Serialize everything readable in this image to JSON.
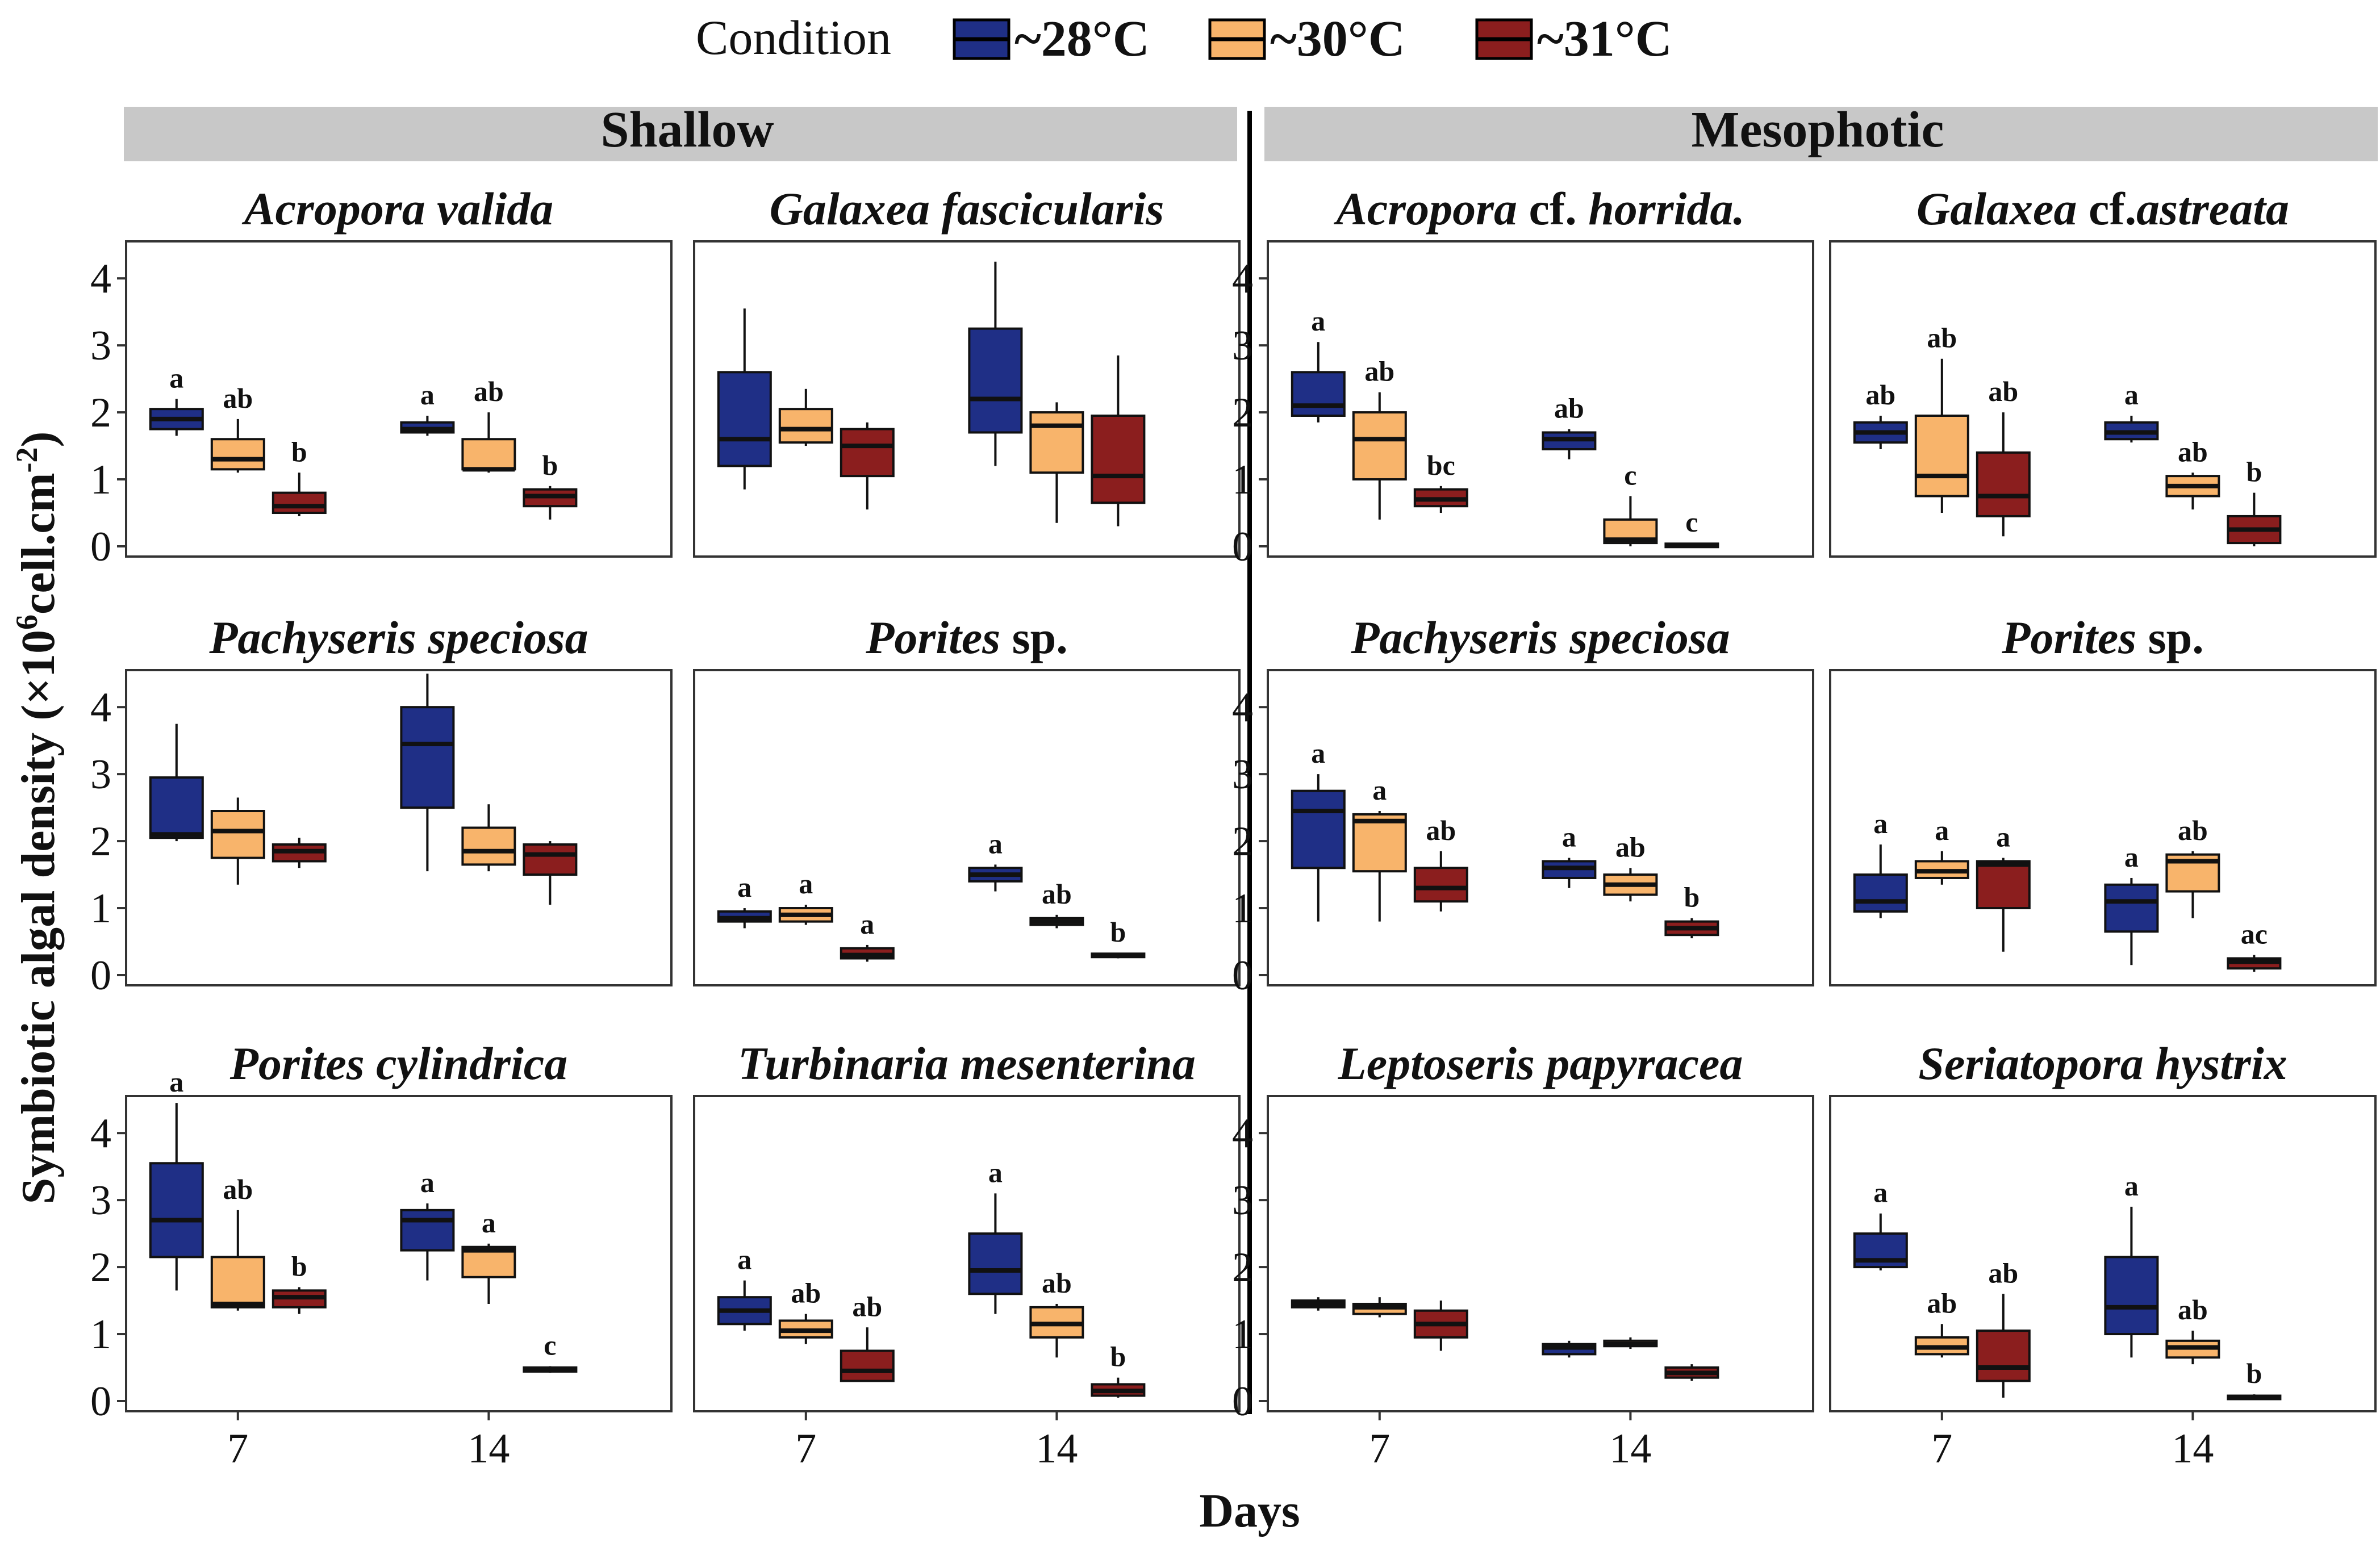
{
  "legend": {
    "title": "Condition",
    "entries": [
      {
        "label": "~28°C",
        "color": "#1f2f86"
      },
      {
        "label": "~30°C",
        "color": "#f8b46b"
      },
      {
        "label": "~31°C",
        "color": "#8b1e1e"
      }
    ]
  },
  "axes": {
    "xlabel": "Days",
    "ylabel_main": "Symbiotic algal density (×10",
    "ylabel_sup1": "6",
    "ylabel_mid": "cell.cm",
    "ylabel_sup2": "-2",
    "ylabel_end": ")",
    "yticks": [
      "0",
      "1",
      "2",
      "3",
      "4"
    ],
    "xticks": [
      "7",
      "14"
    ]
  },
  "strips": [
    {
      "label": "Shallow"
    },
    {
      "label": "Mesophotic"
    }
  ],
  "chart_data": {
    "type": "box",
    "title": "",
    "xlabel": "Days",
    "ylabel": "Symbiotic algal density (×10^6 cell.cm^-2)",
    "ylim": [
      0,
      4.4
    ],
    "categories": [
      "7",
      "14"
    ],
    "series_names": [
      "~28°C",
      "~30°C",
      "~31°C"
    ],
    "panels": [
      {
        "habitat": "Shallow",
        "title_parts": [
          {
            "t": "Acropora valida",
            "i": true
          }
        ],
        "boxes": [
          {
            "day": "7",
            "s": 0,
            "min": 1.65,
            "q1": 1.75,
            "median": 1.9,
            "q3": 2.05,
            "max": 2.2,
            "label": "a"
          },
          {
            "day": "7",
            "s": 1,
            "min": 1.1,
            "q1": 1.15,
            "median": 1.3,
            "q3": 1.6,
            "max": 1.9,
            "label": "ab"
          },
          {
            "day": "7",
            "s": 2,
            "min": 0.45,
            "q1": 0.5,
            "median": 0.6,
            "q3": 0.8,
            "max": 1.1,
            "label": "b"
          },
          {
            "day": "14",
            "s": 0,
            "min": 1.65,
            "q1": 1.7,
            "median": 1.75,
            "q3": 1.85,
            "max": 1.95,
            "label": "a"
          },
          {
            "day": "14",
            "s": 1,
            "min": 1.1,
            "q1": 1.15,
            "median": 1.15,
            "q3": 1.6,
            "max": 2.0,
            "label": "ab"
          },
          {
            "day": "14",
            "s": 2,
            "min": 0.4,
            "q1": 0.6,
            "median": 0.75,
            "q3": 0.85,
            "max": 0.9,
            "label": "b"
          }
        ]
      },
      {
        "habitat": "Shallow",
        "title_parts": [
          {
            "t": "Galaxea fascicularis",
            "i": true
          }
        ],
        "boxes": [
          {
            "day": "7",
            "s": 0,
            "min": 0.85,
            "q1": 1.2,
            "median": 1.6,
            "q3": 2.6,
            "max": 3.55,
            "label": ""
          },
          {
            "day": "7",
            "s": 1,
            "min": 1.5,
            "q1": 1.55,
            "median": 1.75,
            "q3": 2.05,
            "max": 2.35,
            "label": ""
          },
          {
            "day": "7",
            "s": 2,
            "min": 0.55,
            "q1": 1.05,
            "median": 1.5,
            "q3": 1.75,
            "max": 1.85,
            "label": ""
          },
          {
            "day": "14",
            "s": 0,
            "min": 1.2,
            "q1": 1.7,
            "median": 2.2,
            "q3": 3.25,
            "max": 4.25,
            "label": ""
          },
          {
            "day": "14",
            "s": 1,
            "min": 0.35,
            "q1": 1.1,
            "median": 1.8,
            "q3": 2.0,
            "max": 2.15,
            "label": ""
          },
          {
            "day": "14",
            "s": 2,
            "min": 0.3,
            "q1": 0.65,
            "median": 1.05,
            "q3": 1.95,
            "max": 2.85,
            "label": ""
          }
        ]
      },
      {
        "habitat": "Mesophotic",
        "title_parts": [
          {
            "t": "Acropora",
            "i": true
          },
          {
            "t": " cf. ",
            "i": false
          },
          {
            "t": "horrida.",
            "i": true
          }
        ],
        "boxes": [
          {
            "day": "7",
            "s": 0,
            "min": 1.85,
            "q1": 1.95,
            "median": 2.1,
            "q3": 2.6,
            "max": 3.05,
            "label": "a"
          },
          {
            "day": "7",
            "s": 1,
            "min": 0.4,
            "q1": 1.0,
            "median": 1.6,
            "q3": 2.0,
            "max": 2.3,
            "label": "ab"
          },
          {
            "day": "7",
            "s": 2,
            "min": 0.5,
            "q1": 0.6,
            "median": 0.7,
            "q3": 0.85,
            "max": 0.9,
            "label": "bc"
          },
          {
            "day": "14",
            "s": 0,
            "min": 1.3,
            "q1": 1.45,
            "median": 1.6,
            "q3": 1.7,
            "max": 1.75,
            "label": "ab"
          },
          {
            "day": "14",
            "s": 1,
            "min": 0.0,
            "q1": 0.05,
            "median": 0.1,
            "q3": 0.4,
            "max": 0.75,
            "label": "c"
          },
          {
            "day": "14",
            "s": 2,
            "min": 0.0,
            "q1": 0.0,
            "median": 0.02,
            "q3": 0.04,
            "max": 0.05,
            "label": "c"
          }
        ]
      },
      {
        "habitat": "Mesophotic",
        "title_parts": [
          {
            "t": "Galaxea",
            "i": true
          },
          {
            "t": " cf.",
            "i": false
          },
          {
            "t": "astreata",
            "i": true
          }
        ],
        "boxes": [
          {
            "day": "7",
            "s": 0,
            "min": 1.45,
            "q1": 1.55,
            "median": 1.7,
            "q3": 1.85,
            "max": 1.95,
            "label": "ab"
          },
          {
            "day": "7",
            "s": 1,
            "min": 0.5,
            "q1": 0.75,
            "median": 1.05,
            "q3": 1.95,
            "max": 2.8,
            "label": "ab"
          },
          {
            "day": "7",
            "s": 2,
            "min": 0.15,
            "q1": 0.45,
            "median": 0.75,
            "q3": 1.4,
            "max": 2.0,
            "label": "ab"
          },
          {
            "day": "14",
            "s": 0,
            "min": 1.55,
            "q1": 1.6,
            "median": 1.7,
            "q3": 1.85,
            "max": 1.95,
            "label": "a"
          },
          {
            "day": "14",
            "s": 1,
            "min": 0.55,
            "q1": 0.75,
            "median": 0.9,
            "q3": 1.05,
            "max": 1.1,
            "label": "ab"
          },
          {
            "day": "14",
            "s": 2,
            "min": 0.0,
            "q1": 0.05,
            "median": 0.25,
            "q3": 0.45,
            "max": 0.8,
            "label": "b"
          }
        ]
      },
      {
        "habitat": "Shallow",
        "title_parts": [
          {
            "t": "Pachyseris speciosa",
            "i": true
          }
        ],
        "boxes": [
          {
            "day": "7",
            "s": 0,
            "min": 2.0,
            "q1": 2.05,
            "median": 2.1,
            "q3": 2.95,
            "max": 3.75,
            "label": ""
          },
          {
            "day": "7",
            "s": 1,
            "min": 1.35,
            "q1": 1.75,
            "median": 2.15,
            "q3": 2.45,
            "max": 2.65,
            "label": ""
          },
          {
            "day": "7",
            "s": 2,
            "min": 1.6,
            "q1": 1.7,
            "median": 1.85,
            "q3": 1.95,
            "max": 2.05,
            "label": ""
          },
          {
            "day": "14",
            "s": 0,
            "min": 1.55,
            "q1": 2.5,
            "median": 3.45,
            "q3": 4.0,
            "max": 4.5,
            "label": ""
          },
          {
            "day": "14",
            "s": 1,
            "min": 1.55,
            "q1": 1.65,
            "median": 1.85,
            "q3": 2.2,
            "max": 2.55,
            "label": ""
          },
          {
            "day": "14",
            "s": 2,
            "min": 1.05,
            "q1": 1.5,
            "median": 1.8,
            "q3": 1.95,
            "max": 2.0,
            "label": ""
          }
        ]
      },
      {
        "habitat": "Shallow",
        "title_parts": [
          {
            "t": "Porites",
            "i": true
          },
          {
            "t": " sp.",
            "i": false
          }
        ],
        "boxes": [
          {
            "day": "7",
            "s": 0,
            "min": 0.7,
            "q1": 0.8,
            "median": 0.85,
            "q3": 0.95,
            "max": 1.0,
            "label": "a"
          },
          {
            "day": "7",
            "s": 1,
            "min": 0.75,
            "q1": 0.8,
            "median": 0.9,
            "q3": 1.0,
            "max": 1.05,
            "label": "a"
          },
          {
            "day": "7",
            "s": 2,
            "min": 0.2,
            "q1": 0.25,
            "median": 0.3,
            "q3": 0.4,
            "max": 0.45,
            "label": "a"
          },
          {
            "day": "14",
            "s": 0,
            "min": 1.25,
            "q1": 1.4,
            "median": 1.5,
            "q3": 1.6,
            "max": 1.65,
            "label": "a"
          },
          {
            "day": "14",
            "s": 1,
            "min": 0.7,
            "q1": 0.75,
            "median": 0.8,
            "q3": 0.85,
            "max": 0.9,
            "label": "ab"
          },
          {
            "day": "14",
            "s": 2,
            "min": 0.25,
            "q1": 0.27,
            "median": 0.3,
            "q3": 0.32,
            "max": 0.33,
            "label": "b"
          }
        ]
      },
      {
        "habitat": "Mesophotic",
        "title_parts": [
          {
            "t": "Pachyseris speciosa",
            "i": true
          }
        ],
        "boxes": [
          {
            "day": "7",
            "s": 0,
            "min": 0.8,
            "q1": 1.6,
            "median": 2.45,
            "q3": 2.75,
            "max": 3.0,
            "label": "a"
          },
          {
            "day": "7",
            "s": 1,
            "min": 0.8,
            "q1": 1.55,
            "median": 2.3,
            "q3": 2.4,
            "max": 2.45,
            "label": "a"
          },
          {
            "day": "7",
            "s": 2,
            "min": 0.95,
            "q1": 1.1,
            "median": 1.3,
            "q3": 1.6,
            "max": 1.85,
            "label": "ab"
          },
          {
            "day": "14",
            "s": 0,
            "min": 1.3,
            "q1": 1.45,
            "median": 1.6,
            "q3": 1.7,
            "max": 1.75,
            "label": "a"
          },
          {
            "day": "14",
            "s": 1,
            "min": 1.1,
            "q1": 1.2,
            "median": 1.35,
            "q3": 1.5,
            "max": 1.6,
            "label": "ab"
          },
          {
            "day": "14",
            "s": 2,
            "min": 0.55,
            "q1": 0.6,
            "median": 0.7,
            "q3": 0.8,
            "max": 0.85,
            "label": "b"
          }
        ]
      },
      {
        "habitat": "Mesophotic",
        "title_parts": [
          {
            "t": "Porites",
            "i": true
          },
          {
            "t": " sp.",
            "i": false
          }
        ],
        "boxes": [
          {
            "day": "7",
            "s": 0,
            "min": 0.85,
            "q1": 0.95,
            "median": 1.1,
            "q3": 1.5,
            "max": 1.95,
            "label": "a"
          },
          {
            "day": "7",
            "s": 1,
            "min": 1.35,
            "q1": 1.45,
            "median": 1.55,
            "q3": 1.7,
            "max": 1.85,
            "label": "a"
          },
          {
            "day": "7",
            "s": 2,
            "min": 0.35,
            "q1": 1.0,
            "median": 1.65,
            "q3": 1.7,
            "max": 1.75,
            "label": "a"
          },
          {
            "day": "14",
            "s": 0,
            "min": 0.15,
            "q1": 0.65,
            "median": 1.1,
            "q3": 1.35,
            "max": 1.45,
            "label": "a"
          },
          {
            "day": "14",
            "s": 1,
            "min": 0.85,
            "q1": 1.25,
            "median": 1.7,
            "q3": 1.8,
            "max": 1.85,
            "label": "ab"
          },
          {
            "day": "14",
            "s": 2,
            "min": 0.05,
            "q1": 0.1,
            "median": 0.2,
            "q3": 0.25,
            "max": 0.3,
            "label": "ac"
          }
        ]
      },
      {
        "habitat": "Shallow",
        "title_parts": [
          {
            "t": "Porites cylindrica",
            "i": true
          }
        ],
        "boxes": [
          {
            "day": "7",
            "s": 0,
            "min": 1.65,
            "q1": 2.15,
            "median": 2.7,
            "q3": 3.55,
            "max": 4.45,
            "label": "a"
          },
          {
            "day": "7",
            "s": 1,
            "min": 1.35,
            "q1": 1.4,
            "median": 1.45,
            "q3": 2.15,
            "max": 2.85,
            "label": "ab"
          },
          {
            "day": "7",
            "s": 2,
            "min": 1.3,
            "q1": 1.4,
            "median": 1.55,
            "q3": 1.65,
            "max": 1.7,
            "label": "b"
          },
          {
            "day": "14",
            "s": 0,
            "min": 1.8,
            "q1": 2.25,
            "median": 2.7,
            "q3": 2.85,
            "max": 2.95,
            "label": "a"
          },
          {
            "day": "14",
            "s": 1,
            "min": 1.45,
            "q1": 1.85,
            "median": 2.25,
            "q3": 2.3,
            "max": 2.35,
            "label": "a"
          },
          {
            "day": "14",
            "s": 2,
            "min": 0.42,
            "q1": 0.44,
            "median": 0.47,
            "q3": 0.5,
            "max": 0.52,
            "label": "c"
          }
        ]
      },
      {
        "habitat": "Shallow",
        "title_parts": [
          {
            "t": "Turbinaria mesenterina",
            "i": true
          }
        ],
        "boxes": [
          {
            "day": "7",
            "s": 0,
            "min": 1.05,
            "q1": 1.15,
            "median": 1.35,
            "q3": 1.55,
            "max": 1.8,
            "label": "a"
          },
          {
            "day": "7",
            "s": 1,
            "min": 0.85,
            "q1": 0.95,
            "median": 1.05,
            "q3": 1.2,
            "max": 1.3,
            "label": "ab"
          },
          {
            "day": "7",
            "s": 2,
            "min": 0.3,
            "q1": 0.3,
            "median": 0.45,
            "q3": 0.75,
            "max": 1.1,
            "label": "ab"
          },
          {
            "day": "14",
            "s": 0,
            "min": 1.3,
            "q1": 1.6,
            "median": 1.95,
            "q3": 2.5,
            "max": 3.1,
            "label": "a"
          },
          {
            "day": "14",
            "s": 1,
            "min": 0.65,
            "q1": 0.95,
            "median": 1.15,
            "q3": 1.4,
            "max": 1.45,
            "label": "ab"
          },
          {
            "day": "14",
            "s": 2,
            "min": 0.05,
            "q1": 0.08,
            "median": 0.15,
            "q3": 0.25,
            "max": 0.35,
            "label": "b"
          }
        ]
      },
      {
        "habitat": "Mesophotic",
        "title_parts": [
          {
            "t": "Leptoseris papyracea",
            "i": true
          }
        ],
        "boxes": [
          {
            "day": "7",
            "s": 0,
            "min": 1.35,
            "q1": 1.4,
            "median": 1.45,
            "q3": 1.5,
            "max": 1.55,
            "label": ""
          },
          {
            "day": "7",
            "s": 1,
            "min": 1.25,
            "q1": 1.3,
            "median": 1.4,
            "q3": 1.45,
            "max": 1.55,
            "label": ""
          },
          {
            "day": "7",
            "s": 2,
            "min": 0.75,
            "q1": 0.95,
            "median": 1.15,
            "q3": 1.35,
            "max": 1.5,
            "label": ""
          },
          {
            "day": "14",
            "s": 0,
            "min": 0.65,
            "q1": 0.7,
            "median": 0.8,
            "q3": 0.85,
            "max": 0.9,
            "label": ""
          },
          {
            "day": "14",
            "s": 1,
            "min": 0.78,
            "q1": 0.82,
            "median": 0.85,
            "q3": 0.9,
            "max": 0.95,
            "label": ""
          },
          {
            "day": "14",
            "s": 2,
            "min": 0.3,
            "q1": 0.35,
            "median": 0.42,
            "q3": 0.5,
            "max": 0.55,
            "label": ""
          }
        ]
      },
      {
        "habitat": "Mesophotic",
        "title_parts": [
          {
            "t": "Seriatopora hystrix",
            "i": true
          }
        ],
        "boxes": [
          {
            "day": "7",
            "s": 0,
            "min": 1.95,
            "q1": 2.0,
            "median": 2.1,
            "q3": 2.5,
            "max": 2.8,
            "label": "a"
          },
          {
            "day": "7",
            "s": 1,
            "min": 0.65,
            "q1": 0.7,
            "median": 0.8,
            "q3": 0.95,
            "max": 1.15,
            "label": "ab"
          },
          {
            "day": "7",
            "s": 2,
            "min": 0.05,
            "q1": 0.3,
            "median": 0.5,
            "q3": 1.05,
            "max": 1.6,
            "label": "ab"
          },
          {
            "day": "14",
            "s": 0,
            "min": 0.65,
            "q1": 1.0,
            "median": 1.4,
            "q3": 2.15,
            "max": 2.9,
            "label": "a"
          },
          {
            "day": "14",
            "s": 1,
            "min": 0.55,
            "q1": 0.65,
            "median": 0.8,
            "q3": 0.9,
            "max": 1.05,
            "label": "ab"
          },
          {
            "day": "14",
            "s": 2,
            "min": 0.02,
            "q1": 0.03,
            "median": 0.05,
            "q3": 0.08,
            "max": 0.1,
            "label": "b"
          }
        ]
      }
    ]
  }
}
